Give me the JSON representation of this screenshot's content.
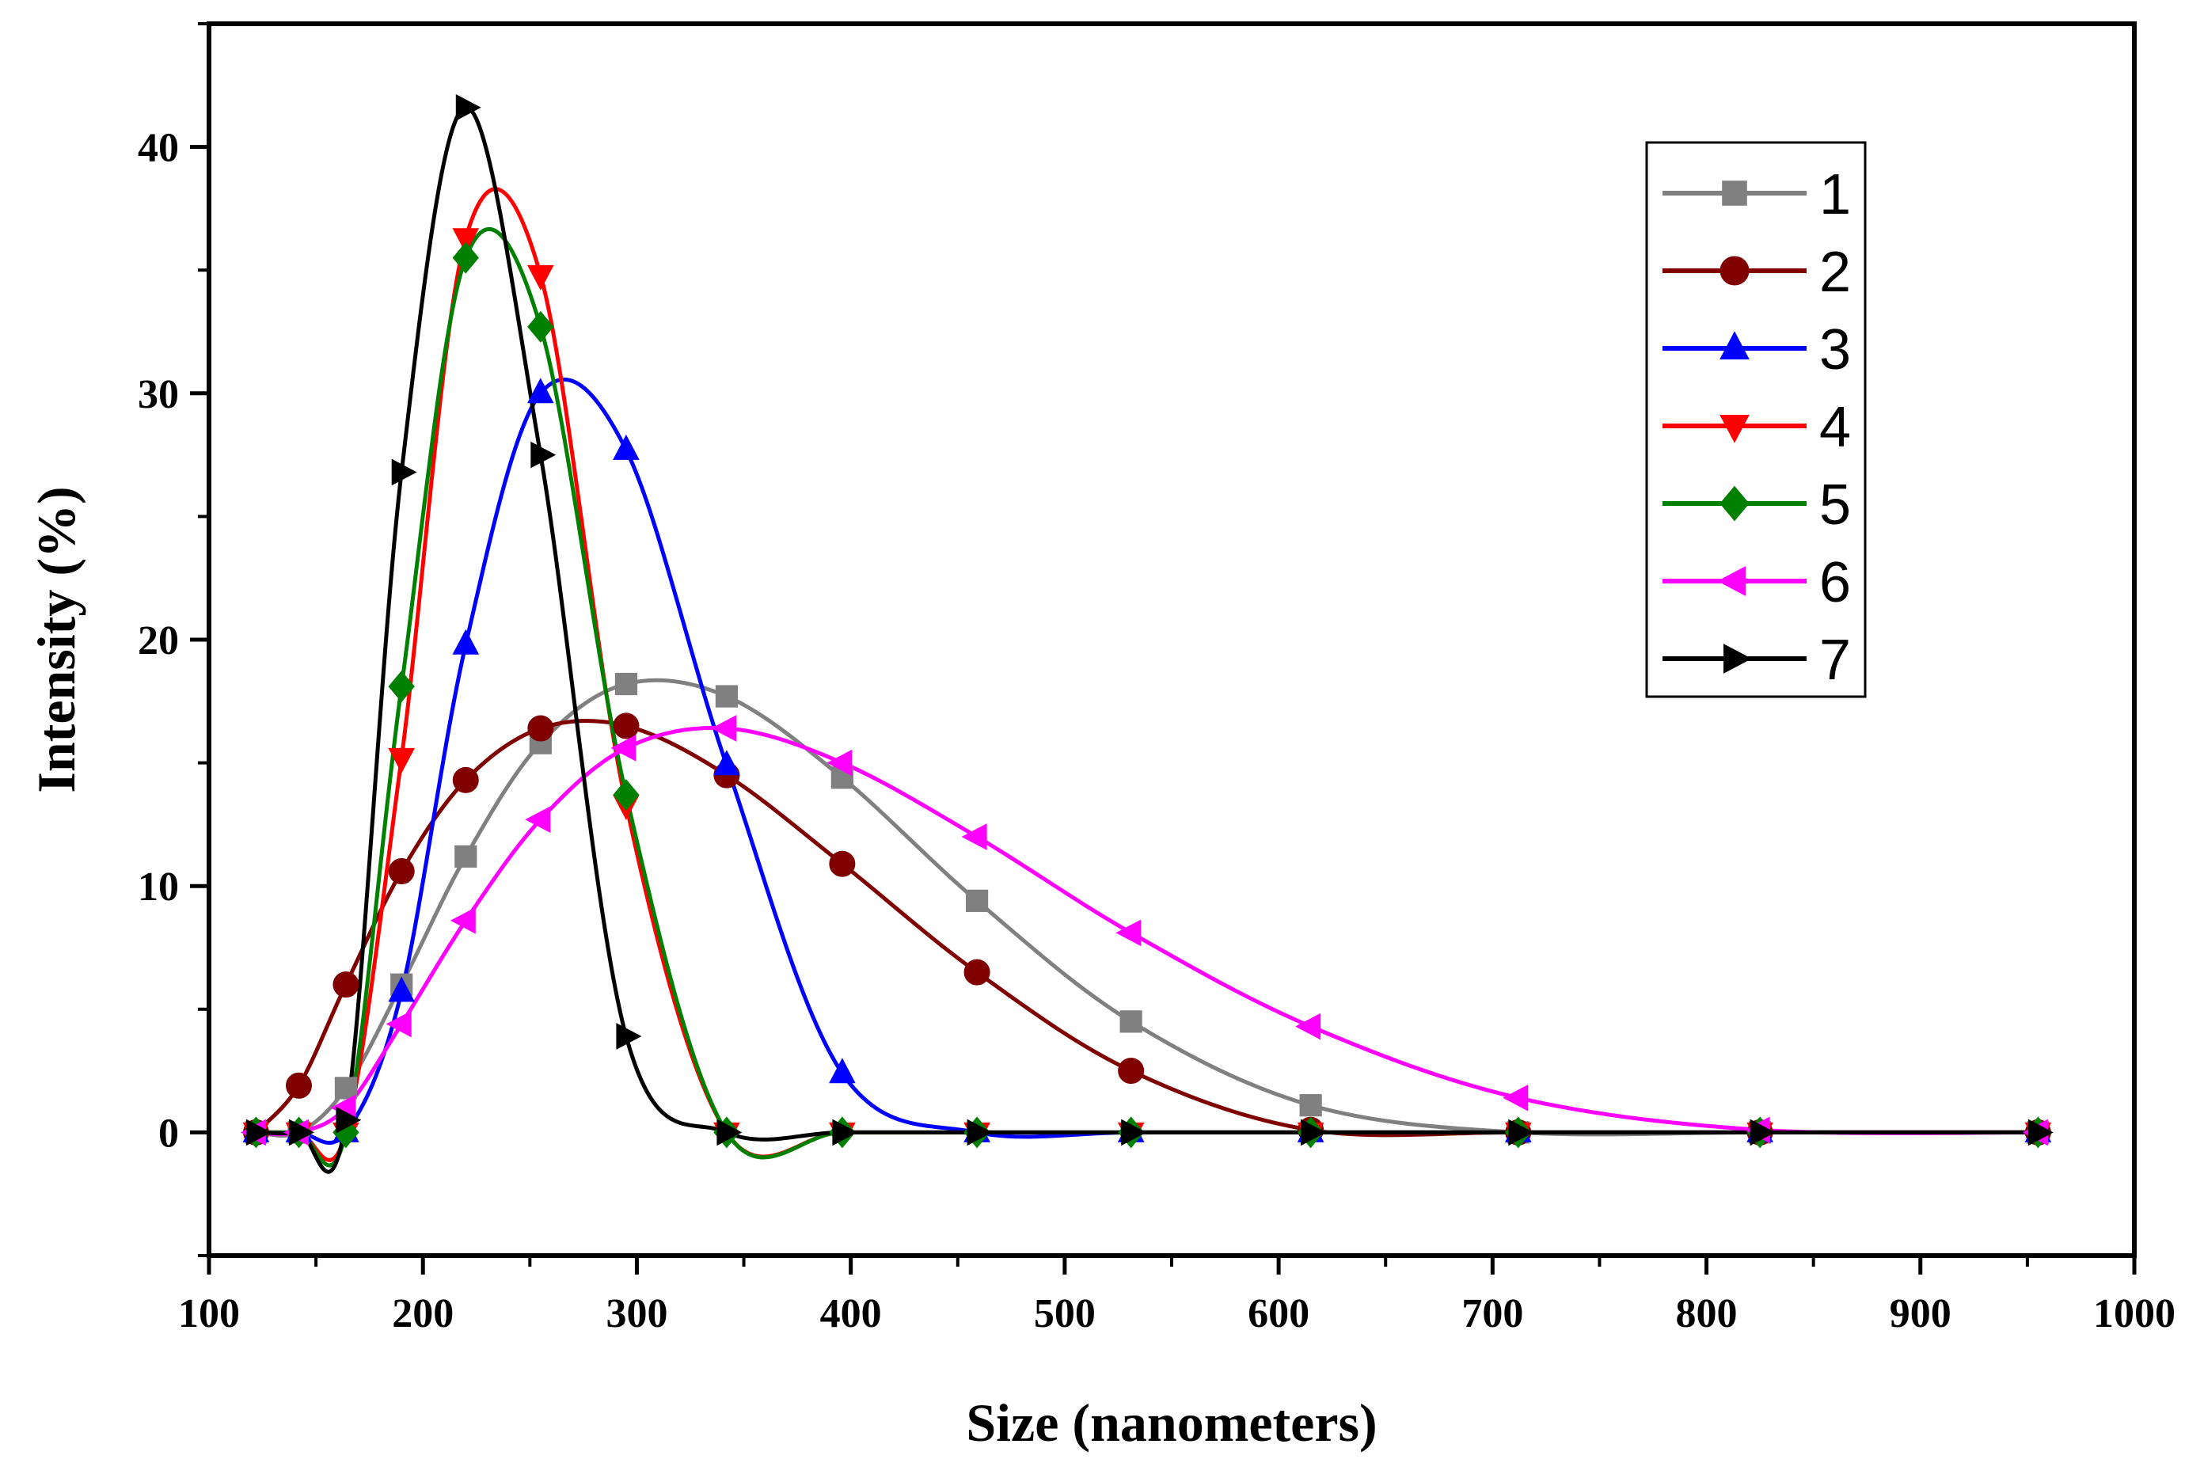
{
  "chart_data": {
    "type": "line",
    "title": "",
    "xlabel": "Size (nanometers)",
    "ylabel": "Intensity (%)",
    "xlim": [
      100,
      1000
    ],
    "ylim": [
      -5,
      45
    ],
    "xticks": [
      100,
      200,
      300,
      400,
      500,
      600,
      700,
      800,
      900,
      1000
    ],
    "xtick_labels": [
      "100",
      "200",
      "300",
      "400",
      "500",
      "600",
      "700",
      "800",
      "900",
      "1000"
    ],
    "yticks": [
      0,
      10,
      20,
      30,
      40
    ],
    "ytick_labels": [
      "0",
      "10",
      "20",
      "30",
      "40"
    ],
    "grid": false,
    "legend_position": "top-right",
    "x": [
      122,
      142,
      164,
      190,
      220,
      255,
      295,
      342,
      396,
      459,
      531,
      615,
      712,
      825,
      955
    ],
    "series": [
      {
        "name": "1",
        "color": "#808080",
        "marker": "square",
        "values": [
          0,
          0,
          1.8,
          6.0,
          11.2,
          15.8,
          18.2,
          17.7,
          14.4,
          9.4,
          4.5,
          1.1,
          0,
          0,
          0
        ]
      },
      {
        "name": "2",
        "color": "#800000",
        "marker": "circle",
        "values": [
          0,
          1.9,
          6.0,
          10.6,
          14.3,
          16.4,
          16.5,
          14.5,
          10.9,
          6.5,
          2.5,
          0.1,
          0,
          0,
          0
        ]
      },
      {
        "name": "3",
        "color": "#0000ff",
        "marker": "triangle-up",
        "values": [
          0,
          0,
          0,
          5.7,
          19.8,
          30.0,
          27.7,
          14.9,
          2.4,
          0,
          0,
          0,
          0,
          0,
          0
        ]
      },
      {
        "name": "4",
        "color": "#ff0000",
        "marker": "triangle-down",
        "values": [
          0,
          0,
          0,
          15.2,
          36.3,
          34.8,
          13.3,
          0,
          0,
          0,
          0,
          0,
          0,
          0,
          0
        ]
      },
      {
        "name": "5",
        "color": "#008000",
        "marker": "diamond",
        "values": [
          0,
          0,
          0,
          18.1,
          35.5,
          32.7,
          13.7,
          0,
          0,
          0,
          0,
          0,
          0,
          0,
          0
        ]
      },
      {
        "name": "6",
        "color": "#ff00ff",
        "marker": "triangle-left",
        "values": [
          0,
          0,
          1.0,
          4.4,
          8.6,
          12.7,
          15.6,
          16.4,
          15.0,
          12.0,
          8.1,
          4.3,
          1.4,
          0.1,
          0
        ]
      },
      {
        "name": "7",
        "color": "#000000",
        "marker": "triangle-right",
        "values": [
          0,
          0,
          0.5,
          26.8,
          41.6,
          27.5,
          3.9,
          0,
          0,
          0,
          0,
          0,
          0,
          0,
          0
        ]
      }
    ]
  }
}
